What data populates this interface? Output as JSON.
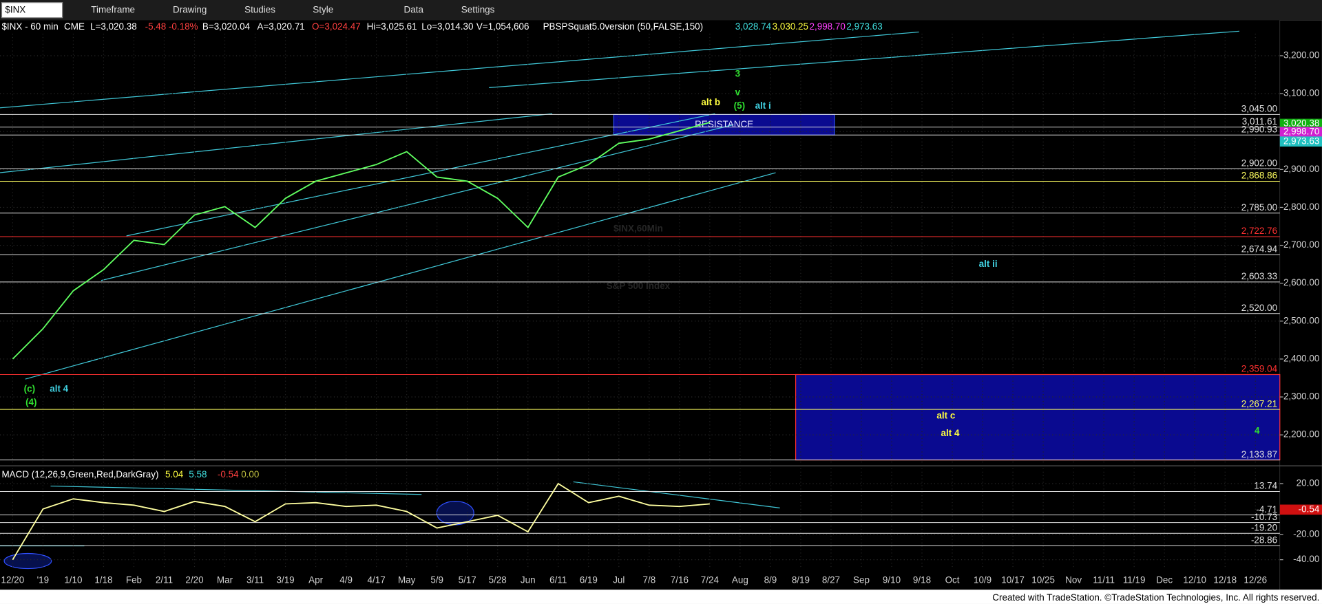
{
  "toolbar": {
    "symbol": "$INX",
    "items": [
      "Timeframe",
      "Drawing",
      "Studies",
      "Style",
      "Data",
      "Settings"
    ]
  },
  "header": {
    "items": [
      {
        "text": "$INX - 60 min",
        "color": "#ffffff"
      },
      {
        "text": "CME",
        "color": "#ffffff"
      },
      {
        "text": "L=3,020.38",
        "color": "#ffffff"
      },
      {
        "text": "-5.48",
        "color": "#ff4040"
      },
      {
        "text": "-0.18%",
        "color": "#ff4040"
      },
      {
        "text": "B=3,020.04",
        "color": "#ffffff"
      },
      {
        "text": "A=3,020.71",
        "color": "#ffffff"
      },
      {
        "text": "O=3,024.47",
        "color": "#ff4040"
      },
      {
        "text": "Hi=3,025.61",
        "color": "#ffffff"
      },
      {
        "text": "Lo=3,014.30",
        "color": "#ffffff"
      },
      {
        "text": "V=1,054,606",
        "color": "#ffffff"
      },
      {
        "text": "PBSPSquat5.0version (50,FALSE,150)",
        "color": "#ffffff"
      },
      {
        "text": "3,028.74",
        "color": "#40e0e0"
      },
      {
        "text": "3,030.25",
        "color": "#ffff40"
      },
      {
        "text": "2,998.70",
        "color": "#ff40ff"
      },
      {
        "text": "2,973.63",
        "color": "#40e0e0"
      }
    ]
  },
  "chart_data": [
    {
      "type": "line",
      "categories": [
        "12/20",
        "'19",
        "1/10",
        "1/18",
        "Feb",
        "2/11",
        "2/20",
        "Mar",
        "3/11",
        "3/19",
        "Apr",
        "4/9",
        "4/17",
        "May",
        "5/9",
        "5/17",
        "5/28",
        "Jun",
        "6/11",
        "6/19",
        "Jul",
        "7/8",
        "7/16",
        "7/24",
        "Aug",
        "8/9",
        "8/19",
        "8/27",
        "Sep",
        "9/10",
        "9/18",
        "Oct",
        "10/9",
        "10/17",
        "10/25",
        "Nov",
        "11/11",
        "11/19",
        "Dec",
        "12/10",
        "12/18",
        "12/26"
      ],
      "series": [
        {
          "color": "#60ff60",
          "values": [
            2400,
            2480,
            2580,
            2636,
            2713,
            2702,
            2780,
            2802,
            2747,
            2824,
            2869,
            2891,
            2913,
            2947,
            2880,
            2869,
            2824,
            2747,
            2880,
            2913,
            2969,
            2980,
            3002,
            3024,
            null,
            null,
            null,
            null,
            null,
            null,
            null,
            null,
            null,
            null,
            null,
            null,
            null,
            null,
            null,
            null,
            null,
            null
          ]
        }
      ],
      "ylim": [
        2125,
        3258
      ],
      "yticks": [
        {
          "value": 3200,
          "label": "3,200.00"
        },
        {
          "value": 3100,
          "label": "3,100.00"
        },
        {
          "value": 3000,
          "label": "3,000.00"
        },
        {
          "value": 2900,
          "label": "2,900.00"
        },
        {
          "value": 2800,
          "label": "2,800.00"
        },
        {
          "value": 2700,
          "label": "2,700.00"
        },
        {
          "value": 2600,
          "label": "2,600.00"
        },
        {
          "value": 2500,
          "label": "2,500.00"
        },
        {
          "value": 2400,
          "label": "2,400.00"
        },
        {
          "value": 2300,
          "label": "2,300.00"
        },
        {
          "value": 2200,
          "label": "2,200.00"
        }
      ],
      "grid": true,
      "levels": [
        {
          "value": 3045,
          "label": "3,045.00",
          "color": "#e0e0e0"
        },
        {
          "value": 3011.61,
          "label": "3,011.61",
          "color": "#e0e0e0"
        },
        {
          "value": 2990.93,
          "label": "2,990.93",
          "color": "#e0e0e0"
        },
        {
          "value": 2902,
          "label": "2,902.00",
          "color": "#e0e0e0"
        },
        {
          "value": 2868.86,
          "label": "2,868.86",
          "color": "#ffff60"
        },
        {
          "value": 2785,
          "label": "2,785.00",
          "color": "#e0e0e0"
        },
        {
          "value": 2722.76,
          "label": "2,722.76",
          "color": "#ff3030"
        },
        {
          "value": 2674.94,
          "label": "2,674.94",
          "color": "#e0e0e0"
        },
        {
          "value": 2603.33,
          "label": "2,603.33",
          "color": "#e0e0e0"
        },
        {
          "value": 2520,
          "label": "2,520.00",
          "color": "#e0e0e0"
        },
        {
          "value": 2359.04,
          "label": "2,359.04",
          "color": "#ff3030"
        },
        {
          "value": 2267.21,
          "label": "2,267.21",
          "color": "#ffff60"
        },
        {
          "value": 2133.87,
          "label": "2,133.87",
          "color": "#e0e0e0"
        }
      ],
      "markers": [
        {
          "value": 3020.38,
          "label": "3,020.38",
          "color": "#10b010"
        },
        {
          "value": 2998.7,
          "label": "2,998.70",
          "color": "#d020d0"
        },
        {
          "value": 2973.63,
          "label": "2,973.63",
          "color": "#20c0c0"
        }
      ],
      "zones": [
        {
          "label": "RESISTANCE",
          "top": 3045,
          "bottom": 2990.93,
          "start": "Jul",
          "end": "8/27"
        },
        {
          "top": 2359.04,
          "bottom": 2133.87,
          "start": "8/19"
        }
      ],
      "annotations": [
        {
          "text": "3",
          "color": "#30e030"
        },
        {
          "text": "v",
          "color": "#30e030"
        },
        {
          "text": "(5)",
          "color": "#30e030"
        },
        {
          "text": "alt i",
          "color": "#40d0e0"
        },
        {
          "text": "alt b",
          "color": "#ffff40"
        },
        {
          "text": "(c)",
          "color": "#30e030"
        },
        {
          "text": "alt 4",
          "color": "#40d0e0"
        },
        {
          "text": "(4)",
          "color": "#30e030"
        },
        {
          "text": "alt ii",
          "color": "#40d0e0"
        },
        {
          "text": "alt c",
          "color": "#ffff40"
        },
        {
          "text": "alt 4",
          "color": "#ffff40"
        },
        {
          "text": "4",
          "color": "#30e030"
        }
      ],
      "watermark": {
        "title": "$INX,60Min",
        "subtitle": "S&P 500 Index"
      }
    },
    {
      "type": "line",
      "title": "MACD (12,26,9,Green,Red,DarkGray)",
      "legend_values": [
        {
          "text": "5.04",
          "color": "#ffff40"
        },
        {
          "text": "5.58",
          "color": "#40e0e0"
        },
        {
          "text": "-0.54",
          "color": "#ff4040"
        },
        {
          "text": "0.00",
          "color": "#c0c040"
        }
      ],
      "series": [
        {
          "color": "#ffffa0",
          "values": [
            -40,
            0,
            8,
            5,
            3,
            -2,
            6,
            2,
            -10,
            4,
            5,
            2,
            3,
            -2,
            -15,
            -10,
            -5,
            -18,
            20,
            5,
            10,
            3,
            2,
            4,
            null,
            null,
            null,
            null,
            null,
            null,
            null,
            null,
            null,
            null,
            null,
            null,
            null,
            null,
            null,
            null,
            null,
            null
          ]
        }
      ],
      "ylim": [
        -47,
        32
      ],
      "yticks": [
        {
          "value": 20,
          "label": "20.00"
        },
        {
          "value": -20,
          "label": "-20.00"
        },
        {
          "value": -40,
          "label": "-40.00"
        }
      ],
      "grid": true,
      "levels": [
        {
          "value": 13.74,
          "label": "13.74",
          "color": "#e0e0e0"
        },
        {
          "value": -4.71,
          "label": "-4.71",
          "color": "#e0e0e0"
        },
        {
          "value": -10.73,
          "label": "-10.73",
          "color": "#e0e0e0"
        },
        {
          "value": -19.2,
          "label": "-19.20",
          "color": "#e0e0e0"
        },
        {
          "value": -28.86,
          "label": "-28.86",
          "color": "#e0e0e0"
        }
      ],
      "markers": [
        {
          "value": -0.54,
          "label": "-0.54",
          "color": "#d01010"
        }
      ]
    }
  ],
  "footer": "Created with TradeStation. ©TradeStation Technologies, Inc. All rights reserved."
}
